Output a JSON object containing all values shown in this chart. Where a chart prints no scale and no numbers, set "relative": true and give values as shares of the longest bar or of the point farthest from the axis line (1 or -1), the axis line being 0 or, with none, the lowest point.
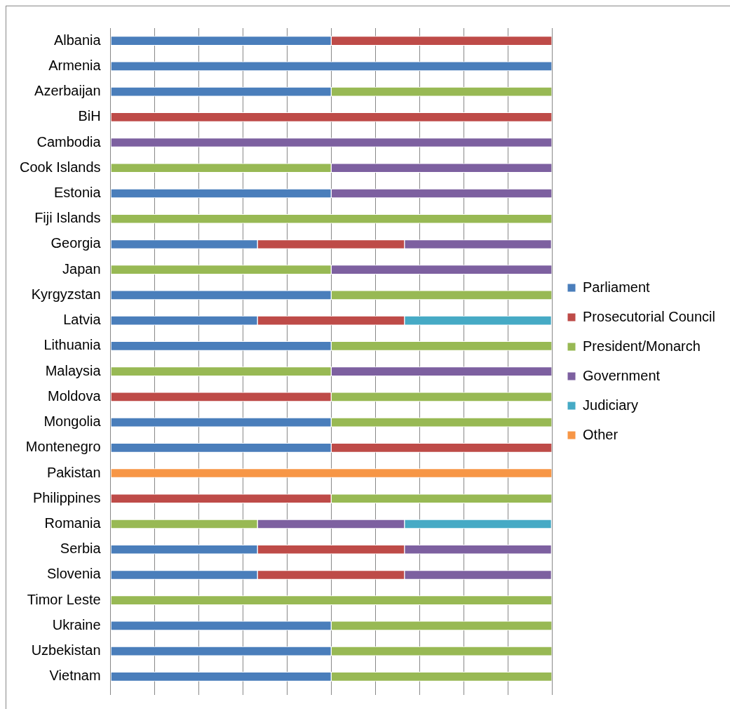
{
  "chart_data": {
    "type": "bar",
    "orientation": "horizontal",
    "stacked": true,
    "relative": true,
    "grid": "x",
    "legend": "right",
    "categories": [
      "Albania",
      "Armenia",
      "Azerbaijan",
      "BiH",
      "Cambodia",
      "Cook Islands",
      "Estonia",
      "Fiji Islands",
      "Georgia",
      "Japan",
      "Kyrgyzstan",
      "Latvia",
      "Lithuania",
      "Malaysia",
      "Moldova",
      "Mongolia",
      "Montenegro",
      "Pakistan",
      "Philippines",
      "Romania",
      "Serbia",
      "Slovenia",
      "Timor Leste",
      "Ukraine",
      "Uzbekistan",
      "Vietnam"
    ],
    "series": [
      {
        "name": "Parliament",
        "color": "#4a7ebb",
        "values": [
          0.5,
          1,
          0.5,
          null,
          null,
          null,
          0.5,
          null,
          0.333,
          null,
          0.5,
          0.333,
          0.5,
          null,
          null,
          0.5,
          0.5,
          null,
          null,
          null,
          0.333,
          0.333,
          null,
          0.5,
          0.5,
          0.5
        ]
      },
      {
        "name": "Prosecutorial Council",
        "color": "#be4b48",
        "values": [
          0.5,
          null,
          null,
          1,
          null,
          null,
          null,
          null,
          0.333,
          null,
          null,
          0.333,
          null,
          null,
          0.5,
          null,
          0.5,
          null,
          0.5,
          null,
          0.333,
          0.333,
          null,
          null,
          null,
          null
        ]
      },
      {
        "name": "President/Monarch",
        "color": "#98b954",
        "values": [
          null,
          null,
          0.5,
          null,
          null,
          0.5,
          null,
          1,
          null,
          0.5,
          0.5,
          null,
          0.5,
          0.5,
          0.5,
          0.5,
          null,
          null,
          0.5,
          0.333,
          null,
          null,
          1,
          0.5,
          0.5,
          0.5
        ]
      },
      {
        "name": "Government",
        "color": "#7d60a0",
        "values": [
          null,
          null,
          null,
          null,
          1,
          0.5,
          0.5,
          null,
          0.333,
          0.5,
          null,
          null,
          null,
          0.5,
          null,
          null,
          null,
          null,
          null,
          0.333,
          0.333,
          0.333,
          null,
          null,
          null,
          null
        ]
      },
      {
        "name": "Judiciary",
        "color": "#46aac5",
        "values": [
          null,
          null,
          null,
          null,
          null,
          null,
          null,
          null,
          null,
          null,
          null,
          0.333,
          null,
          null,
          null,
          null,
          null,
          null,
          null,
          0.333,
          null,
          null,
          null,
          null,
          null,
          null
        ]
      },
      {
        "name": "Other",
        "color": "#f79646",
        "values": [
          null,
          null,
          null,
          null,
          null,
          null,
          null,
          null,
          null,
          null,
          null,
          null,
          null,
          null,
          null,
          null,
          null,
          1,
          null,
          null,
          null,
          null,
          null,
          null,
          null,
          null
        ]
      }
    ]
  }
}
